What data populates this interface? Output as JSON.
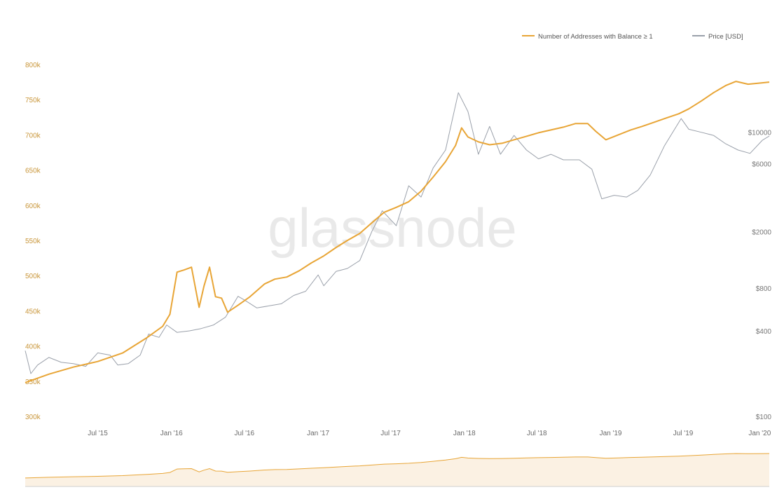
{
  "watermark": "glassnode",
  "colors": {
    "addresses": "#e8a536",
    "price": "#9aa0aa",
    "brush_fill": "#fbf1e3",
    "left_tick": "#c9963a",
    "right_tick": "#777777"
  },
  "chart_data": {
    "type": "line",
    "title": "",
    "legend": {
      "placement": "top-right",
      "entries": [
        "Number of Addresses with Balance ≥ 1",
        "Price [USD]"
      ]
    },
    "x_axis": {
      "type": "date",
      "range": [
        "2015-01-01",
        "2020-02-01"
      ],
      "ticks": [
        {
          "date": "2015-07-01",
          "label": "Jul '15"
        },
        {
          "date": "2016-01-01",
          "label": "Jan '16"
        },
        {
          "date": "2016-07-01",
          "label": "Jul '16"
        },
        {
          "date": "2017-01-01",
          "label": "Jan '17"
        },
        {
          "date": "2017-07-01",
          "label": "Jul '17"
        },
        {
          "date": "2018-01-01",
          "label": "Jan '18"
        },
        {
          "date": "2018-07-01",
          "label": "Jul '18"
        },
        {
          "date": "2019-01-01",
          "label": "Jan '19"
        },
        {
          "date": "2019-07-01",
          "label": "Jul '19"
        },
        {
          "date": "2020-01-01",
          "label": "Jan '20"
        }
      ]
    },
    "y_left": {
      "range": [
        300000,
        800000
      ],
      "ticks": [
        {
          "value": 300000,
          "label": "300k"
        },
        {
          "value": 350000,
          "label": "350k"
        },
        {
          "value": 400000,
          "label": "400k"
        },
        {
          "value": 450000,
          "label": "450k"
        },
        {
          "value": 500000,
          "label": "500k"
        },
        {
          "value": 550000,
          "label": "550k"
        },
        {
          "value": 600000,
          "label": "600k"
        },
        {
          "value": 650000,
          "label": "650k"
        },
        {
          "value": 700000,
          "label": "700k"
        },
        {
          "value": 750000,
          "label": "750k"
        },
        {
          "value": 800000,
          "label": "800k"
        }
      ]
    },
    "y_right": {
      "scale": "log",
      "range": [
        100,
        30000
      ],
      "ticks": [
        {
          "value": 100,
          "label": "$100"
        },
        {
          "value": 400,
          "label": "$400"
        },
        {
          "value": 800,
          "label": "$800"
        },
        {
          "value": 2000,
          "label": "$2000"
        },
        {
          "value": 6000,
          "label": "$6000"
        },
        {
          "value": 10000,
          "label": "$10000"
        }
      ]
    },
    "series": [
      {
        "name": "Number of Addresses with Balance ≥ 1",
        "axis": "left",
        "points": [
          [
            "2015-01-01",
            348000
          ],
          [
            "2015-03-01",
            360000
          ],
          [
            "2015-05-01",
            370000
          ],
          [
            "2015-07-01",
            378000
          ],
          [
            "2015-09-01",
            390000
          ],
          [
            "2015-11-01",
            412000
          ],
          [
            "2015-12-10",
            428000
          ],
          [
            "2015-12-28",
            445000
          ],
          [
            "2016-01-15",
            505000
          ],
          [
            "2016-02-01",
            508000
          ],
          [
            "2016-02-20",
            512000
          ],
          [
            "2016-03-10",
            455000
          ],
          [
            "2016-03-22",
            485000
          ],
          [
            "2016-04-05",
            512000
          ],
          [
            "2016-04-20",
            470000
          ],
          [
            "2016-05-05",
            468000
          ],
          [
            "2016-05-20",
            448000
          ],
          [
            "2016-06-15",
            458000
          ],
          [
            "2016-07-15",
            470000
          ],
          [
            "2016-08-20",
            488000
          ],
          [
            "2016-09-15",
            495000
          ],
          [
            "2016-10-15",
            498000
          ],
          [
            "2016-11-15",
            507000
          ],
          [
            "2016-12-15",
            518000
          ],
          [
            "2017-01-15",
            528000
          ],
          [
            "2017-02-15",
            540000
          ],
          [
            "2017-03-15",
            550000
          ],
          [
            "2017-04-15",
            560000
          ],
          [
            "2017-05-15",
            575000
          ],
          [
            "2017-06-15",
            590000
          ],
          [
            "2017-07-15",
            597000
          ],
          [
            "2017-08-15",
            605000
          ],
          [
            "2017-09-15",
            620000
          ],
          [
            "2017-10-15",
            640000
          ],
          [
            "2017-11-15",
            662000
          ],
          [
            "2017-12-10",
            685000
          ],
          [
            "2017-12-25",
            710000
          ],
          [
            "2018-01-10",
            697000
          ],
          [
            "2018-02-05",
            690000
          ],
          [
            "2018-03-05",
            686000
          ],
          [
            "2018-04-05",
            688000
          ],
          [
            "2018-05-05",
            693000
          ],
          [
            "2018-06-05",
            698000
          ],
          [
            "2018-07-05",
            703000
          ],
          [
            "2018-08-05",
            707000
          ],
          [
            "2018-09-05",
            711000
          ],
          [
            "2018-10-05",
            716000
          ],
          [
            "2018-11-05",
            716000
          ],
          [
            "2018-11-25",
            705000
          ],
          [
            "2018-12-20",
            693000
          ],
          [
            "2019-01-20",
            700000
          ],
          [
            "2019-02-20",
            707000
          ],
          [
            "2019-03-20",
            712000
          ],
          [
            "2019-04-20",
            718000
          ],
          [
            "2019-05-20",
            724000
          ],
          [
            "2019-06-20",
            730000
          ],
          [
            "2019-07-15",
            737000
          ],
          [
            "2019-08-15",
            748000
          ],
          [
            "2019-09-15",
            760000
          ],
          [
            "2019-10-15",
            770000
          ],
          [
            "2019-11-10",
            776000
          ],
          [
            "2019-12-10",
            772000
          ],
          [
            "2020-01-15",
            774000
          ],
          [
            "2020-02-01",
            775000
          ]
        ]
      },
      {
        "name": "Price [USD]",
        "axis": "right",
        "points": [
          [
            "2015-01-01",
            290
          ],
          [
            "2015-01-15",
            200
          ],
          [
            "2015-02-01",
            230
          ],
          [
            "2015-03-01",
            260
          ],
          [
            "2015-04-01",
            240
          ],
          [
            "2015-05-01",
            235
          ],
          [
            "2015-06-01",
            225
          ],
          [
            "2015-07-01",
            280
          ],
          [
            "2015-08-01",
            270
          ],
          [
            "2015-08-20",
            230
          ],
          [
            "2015-09-15",
            235
          ],
          [
            "2015-10-15",
            270
          ],
          [
            "2015-11-05",
            380
          ],
          [
            "2015-12-01",
            360
          ],
          [
            "2015-12-20",
            440
          ],
          [
            "2016-01-15",
            390
          ],
          [
            "2016-02-15",
            400
          ],
          [
            "2016-03-15",
            415
          ],
          [
            "2016-04-15",
            440
          ],
          [
            "2016-05-15",
            500
          ],
          [
            "2016-06-15",
            700
          ],
          [
            "2016-07-01",
            660
          ],
          [
            "2016-08-01",
            580
          ],
          [
            "2016-09-01",
            600
          ],
          [
            "2016-10-01",
            620
          ],
          [
            "2016-11-01",
            710
          ],
          [
            "2016-12-01",
            760
          ],
          [
            "2017-01-01",
            990
          ],
          [
            "2017-01-15",
            830
          ],
          [
            "2017-02-15",
            1050
          ],
          [
            "2017-03-15",
            1100
          ],
          [
            "2017-04-15",
            1250
          ],
          [
            "2017-05-15",
            2000
          ],
          [
            "2017-06-10",
            2800
          ],
          [
            "2017-07-15",
            2200
          ],
          [
            "2017-08-15",
            4200
          ],
          [
            "2017-09-15",
            3500
          ],
          [
            "2017-10-15",
            5600
          ],
          [
            "2017-11-15",
            7500
          ],
          [
            "2017-12-17",
            19000
          ],
          [
            "2018-01-10",
            14000
          ],
          [
            "2018-02-05",
            7000
          ],
          [
            "2018-03-05",
            11000
          ],
          [
            "2018-04-01",
            7000
          ],
          [
            "2018-05-05",
            9500
          ],
          [
            "2018-06-05",
            7500
          ],
          [
            "2018-07-05",
            6500
          ],
          [
            "2018-08-05",
            7000
          ],
          [
            "2018-09-05",
            6400
          ],
          [
            "2018-10-15",
            6400
          ],
          [
            "2018-11-15",
            5500
          ],
          [
            "2018-12-10",
            3400
          ],
          [
            "2019-01-10",
            3600
          ],
          [
            "2019-02-10",
            3500
          ],
          [
            "2019-03-10",
            3900
          ],
          [
            "2019-04-10",
            5000
          ],
          [
            "2019-05-15",
            8000
          ],
          [
            "2019-06-26",
            12500
          ],
          [
            "2019-07-15",
            10500
          ],
          [
            "2019-08-15",
            10000
          ],
          [
            "2019-09-15",
            9500
          ],
          [
            "2019-10-15",
            8300
          ],
          [
            "2019-11-15",
            7500
          ],
          [
            "2019-12-15",
            7100
          ],
          [
            "2020-01-15",
            8800
          ],
          [
            "2020-02-01",
            9400
          ]
        ]
      }
    ],
    "brush": {
      "range": [
        "2015-01-01",
        "2020-02-01"
      ]
    }
  }
}
